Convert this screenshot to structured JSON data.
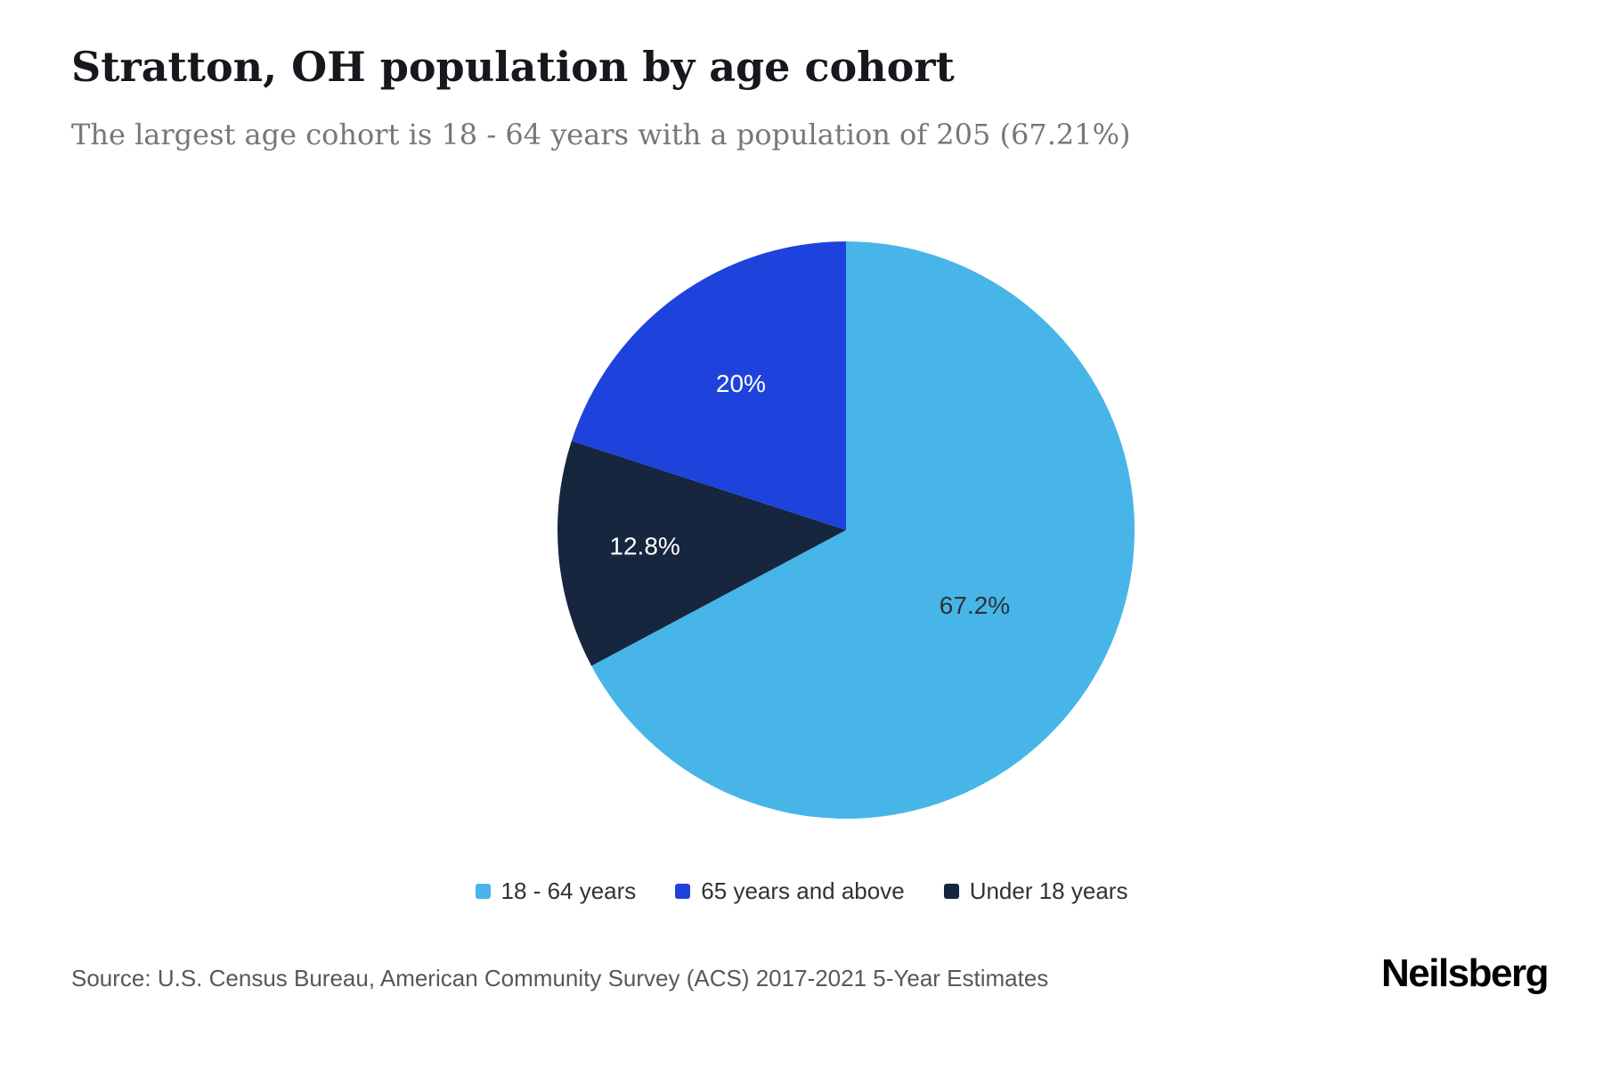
{
  "header": {
    "title": "Stratton, OH population by age cohort",
    "subtitle": "The largest age cohort is 18 - 64 years with a population of 205 (67.21%)"
  },
  "chart_data": {
    "type": "pie",
    "title": "Stratton, OH population by age cohort",
    "unit": "percent",
    "start_angle_deg": 0,
    "direction": "clockwise",
    "legend_position": "bottom",
    "slices": [
      {
        "label": "18 - 64 years",
        "value": 67.2,
        "display": "67.2%",
        "color": "#47b5e8",
        "text_color": "#2d3338"
      },
      {
        "label": "Under 18 years",
        "value": 12.8,
        "display": "12.8%",
        "color": "#16263f",
        "text_color": "#ffffff"
      },
      {
        "label": "65 years and above",
        "value": 20,
        "display": "20%",
        "color": "#1e43dc",
        "text_color": "#ffffff"
      }
    ],
    "legend": [
      "18 - 64 years",
      "65 years and above",
      "Under 18 years"
    ]
  },
  "footer": {
    "source": "Source: U.S. Census Bureau, American Community Survey (ACS) 2017-2021 5-Year Estimates",
    "brand": "Neilsberg"
  }
}
